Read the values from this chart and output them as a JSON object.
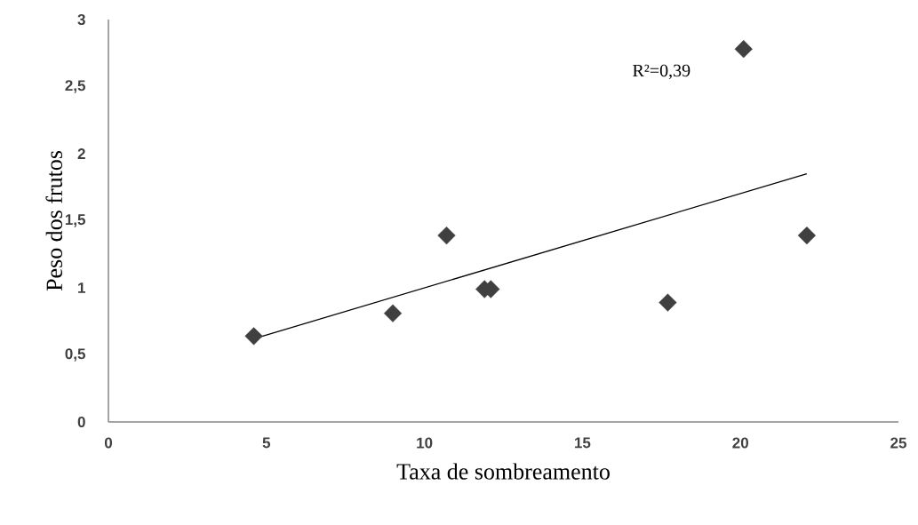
{
  "chart_data": {
    "type": "scatter",
    "xlabel": "Taxa de sombreamento",
    "ylabel": "Peso dos frutos",
    "annotations": [
      "R²=0,39"
    ],
    "xlim": [
      0,
      25
    ],
    "xticks": [
      0,
      5,
      10,
      15,
      20,
      25
    ],
    "ylim": [
      0,
      3
    ],
    "yticks": [
      0,
      {
        "value": 0.5,
        "label": "0,5"
      },
      1,
      {
        "value": 1.5,
        "label": "1,5"
      },
      2,
      {
        "value": 2.5,
        "label": "2,5"
      },
      3
    ],
    "series": [
      {
        "marker": "diamond",
        "color": "#404040",
        "x": [
          4.6,
          9.0,
          10.7,
          11.9,
          12.1,
          17.7,
          20.1,
          22.1
        ],
        "values": [
          0.64,
          0.81,
          1.39,
          0.99,
          0.99,
          0.89,
          2.78,
          1.39
        ]
      },
      {
        "type": "line",
        "color": "#000000",
        "x": [
          4.6,
          22.1
        ],
        "values": [
          0.62,
          1.85
        ]
      }
    ]
  }
}
